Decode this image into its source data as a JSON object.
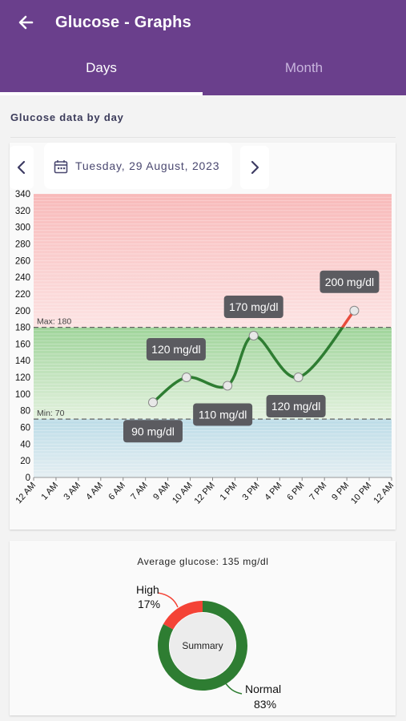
{
  "header": {
    "title": "Glucose - Graphs",
    "back_icon": "arrow-left-icon"
  },
  "tabs": [
    {
      "label": "Days",
      "selected": true
    },
    {
      "label": "Month",
      "selected": false
    }
  ],
  "section": {
    "label": "Glucose data by day"
  },
  "date_nav": {
    "date": "Tuesday, 29 August, 2023",
    "prev_icon": "chevron-left-icon",
    "next_icon": "chevron-right-icon",
    "calendar_icon": "calendar-icon"
  },
  "colors": {
    "primary": "#6a3f8c",
    "high_zone": "#f7c9c9",
    "normal_zone": "#c8e6c4",
    "low_zone": "#cde3ec",
    "line": "#2e7d32",
    "high_line": "#e74c3c"
  },
  "chart_data": {
    "type": "line",
    "x_categories": [
      "12 AM",
      "1 AM",
      "3 AM",
      "4 AM",
      "6 AM",
      "7 AM",
      "9 AM",
      "10 AM",
      "12 PM",
      "1 PM",
      "3 PM",
      "4 PM",
      "6 PM",
      "7 PM",
      "9 PM",
      "10 PM",
      "12 AM"
    ],
    "ylim": [
      0,
      340
    ],
    "y_ticks": [
      0,
      20,
      40,
      60,
      80,
      100,
      120,
      140,
      160,
      180,
      200,
      220,
      240,
      260,
      280,
      300,
      320,
      340
    ],
    "thresholds": {
      "max": 180,
      "min": 70,
      "max_label": "Max: 180",
      "min_label": "Min: 70"
    },
    "series": [
      {
        "points": [
          {
            "x": "8 AM",
            "y": 90,
            "label": "90 mg/dl"
          },
          {
            "x": "10:15 AM",
            "y": 120,
            "label": "120 mg/dl"
          },
          {
            "x": "1 PM",
            "y": 110,
            "label": "110 mg/dl"
          },
          {
            "x": "2:45 PM",
            "y": 170,
            "label": "170 mg/dl"
          },
          {
            "x": "5:45 PM",
            "y": 120,
            "label": "120 mg/dl"
          },
          {
            "x": "9:30 PM",
            "y": 200,
            "label": "200 mg/dl"
          }
        ]
      }
    ]
  },
  "summary": {
    "average_text": "Average glucose: 135 mg/dl",
    "center_label": "Summary",
    "slices": [
      {
        "name": "High",
        "percent": 17,
        "percent_text": "17%",
        "color": "#f44336"
      },
      {
        "name": "Normal",
        "percent": 83,
        "percent_text": "83%",
        "color": "#2e7d32"
      }
    ]
  }
}
